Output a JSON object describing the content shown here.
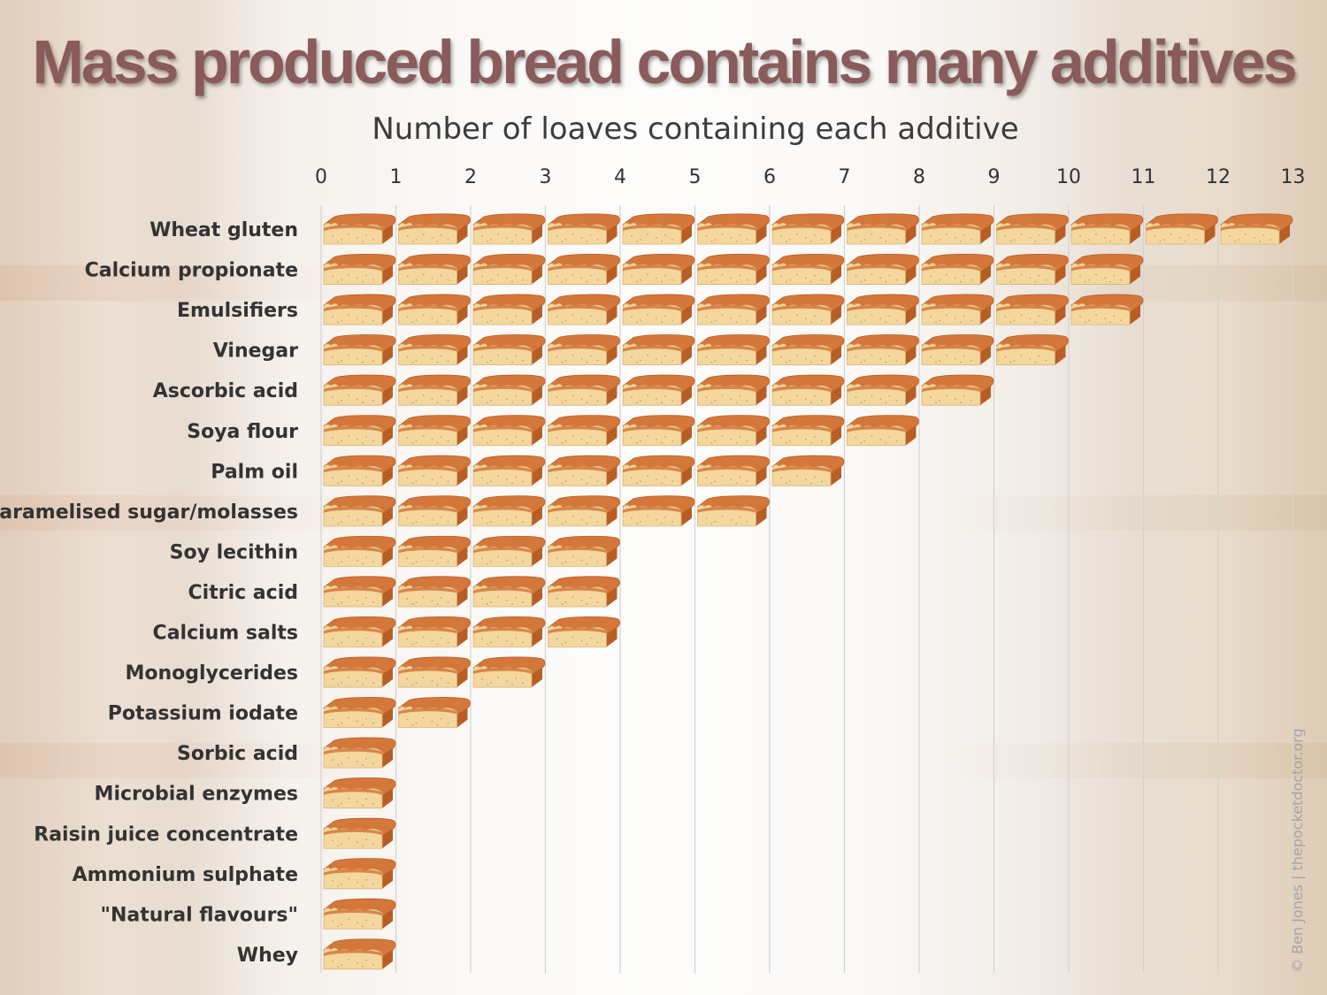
{
  "title": "Mass produced bread contains many additives",
  "credit": "© Ben Jones | thepocketdoctor.org",
  "chart_data": {
    "type": "bar",
    "orientation": "horizontal",
    "title": "Mass produced bread contains many additives",
    "subtitle": "Number of loaves containing each additive",
    "xlabel": "Number of loaves containing each additive",
    "ylabel": "",
    "xlim": [
      0,
      13
    ],
    "ticks": [
      0,
      1,
      2,
      3,
      4,
      5,
      6,
      7,
      8,
      9,
      10,
      11,
      12,
      13
    ],
    "grid": true,
    "mark": "bread-loaf-icon",
    "categories": [
      "Wheat gluten",
      "Calcium propionate",
      "Emulsifiers",
      "Vinegar",
      "Ascorbic acid",
      "Soya flour",
      "Palm oil",
      "Caramelised sugar/molasses",
      "Soy lecithin",
      "Citric acid",
      "Calcium salts",
      "Monoglycerides",
      "Potassium iodate",
      "Sorbic acid",
      "Microbial enzymes",
      "Raisin juice concentrate",
      "Ammonium sulphate",
      "\"Natural flavours\"",
      "Whey"
    ],
    "values": [
      13,
      11,
      11,
      10,
      9,
      8,
      7,
      6,
      4,
      4,
      4,
      3,
      2,
      1,
      1,
      1,
      1,
      1,
      1
    ]
  },
  "colors": {
    "title": "#8a5b5b",
    "crust": "#d4773a",
    "crust_dark": "#b85e25",
    "crumb": "#f3d79f",
    "grid": "#d2d2d2"
  }
}
